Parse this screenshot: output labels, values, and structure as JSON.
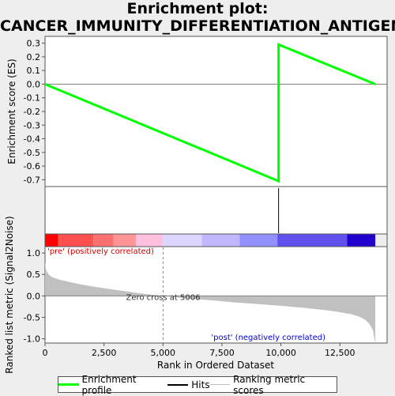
{
  "title_line1": "Enrichment plot:",
  "title_line2": "CANCER_IMMUNITY_DIFFERENTIATION_ANTIGENS",
  "colors": {
    "profile": "#00ff00",
    "hits": "#000000",
    "metric_fill": "#c0c0c0",
    "zero_line": "#808080",
    "pre_label": "#cc0000",
    "post_label": "#0000cc"
  },
  "chart_data": [
    {
      "type": "line",
      "name": "enrichment-profile",
      "ylabel": "Enrichment score (ES)",
      "ylim": [
        -0.75,
        0.35
      ],
      "yticks": [
        "0.3",
        "0.2",
        "0.1",
        "0.0",
        "-0.1",
        "-0.2",
        "-0.3",
        "-0.4",
        "-0.5",
        "-0.6",
        "-0.7"
      ],
      "yticks_values": [
        0.3,
        0.2,
        0.1,
        0.0,
        -0.1,
        -0.2,
        -0.3,
        -0.4,
        -0.5,
        -0.6,
        -0.7
      ],
      "x": [
        0,
        9900,
        9900,
        14000
      ],
      "y": [
        0.0,
        -0.71,
        0.29,
        0.0
      ],
      "grid": false
    },
    {
      "type": "line",
      "name": "hits",
      "x_hits": [
        9900
      ]
    },
    {
      "type": "heatmap",
      "name": "ranking-colorbar",
      "segments": [
        {
          "x0": 0,
          "x1": 550,
          "color": "#ff0000"
        },
        {
          "x0": 550,
          "x1": 2050,
          "color": "#ff4f4f"
        },
        {
          "x0": 2050,
          "x1": 2900,
          "color": "#ff7070"
        },
        {
          "x0": 2900,
          "x1": 3850,
          "color": "#ff9595"
        },
        {
          "x0": 3850,
          "x1": 5000,
          "color": "#ffc0e0"
        },
        {
          "x0": 5000,
          "x1": 6650,
          "color": "#dcd5ff"
        },
        {
          "x0": 6650,
          "x1": 8250,
          "color": "#c0b8ff"
        },
        {
          "x0": 8250,
          "x1": 9850,
          "color": "#9090ff"
        },
        {
          "x0": 9850,
          "x1": 12800,
          "color": "#6050ee"
        },
        {
          "x0": 12800,
          "x1": 14000,
          "color": "#2000cc"
        }
      ]
    },
    {
      "type": "area",
      "name": "ranked-list-metric",
      "xlabel": "Rank in Ordered Dataset",
      "ylabel": "Ranked list metric (Signal2Noise)",
      "ylim": [
        -1.1,
        1.15
      ],
      "yticks": [
        "1.0",
        "0.5",
        "0.0",
        "-0.5",
        "-1.0"
      ],
      "yticks_values": [
        1.0,
        0.5,
        0.0,
        -0.5,
        -1.0
      ],
      "xlim": [
        0,
        14500
      ],
      "xticks": [
        "0",
        "2,500",
        "5,000",
        "7,500",
        "10,000",
        "12,500"
      ],
      "xticks_values": [
        0,
        2500,
        5000,
        7500,
        10000,
        12500
      ],
      "x": [
        0,
        50,
        150,
        300,
        600,
        1000,
        1500,
        2000,
        2500,
        3000,
        3500,
        4000,
        4500,
        5006,
        5500,
        6000,
        7000,
        8000,
        9000,
        10000,
        11000,
        12000,
        12500,
        13000,
        13300,
        13550,
        13750,
        13900,
        14000
      ],
      "y": [
        0.78,
        0.6,
        0.5,
        0.44,
        0.38,
        0.33,
        0.27,
        0.22,
        0.18,
        0.14,
        0.1,
        0.06,
        0.03,
        0.0,
        -0.03,
        -0.06,
        -0.1,
        -0.15,
        -0.19,
        -0.23,
        -0.28,
        -0.34,
        -0.38,
        -0.43,
        -0.48,
        -0.55,
        -0.65,
        -0.8,
        -1.12
      ],
      "zero_cross_x": 5006,
      "zero_cross_label": "Zero cross at 5006",
      "pre_label": "'pre' (positively correlated)",
      "post_label": "'post' (negatively correlated)"
    }
  ],
  "legend": {
    "profile": "Enrichment profile",
    "hits": "Hits",
    "metric": "Ranking metric scores"
  }
}
